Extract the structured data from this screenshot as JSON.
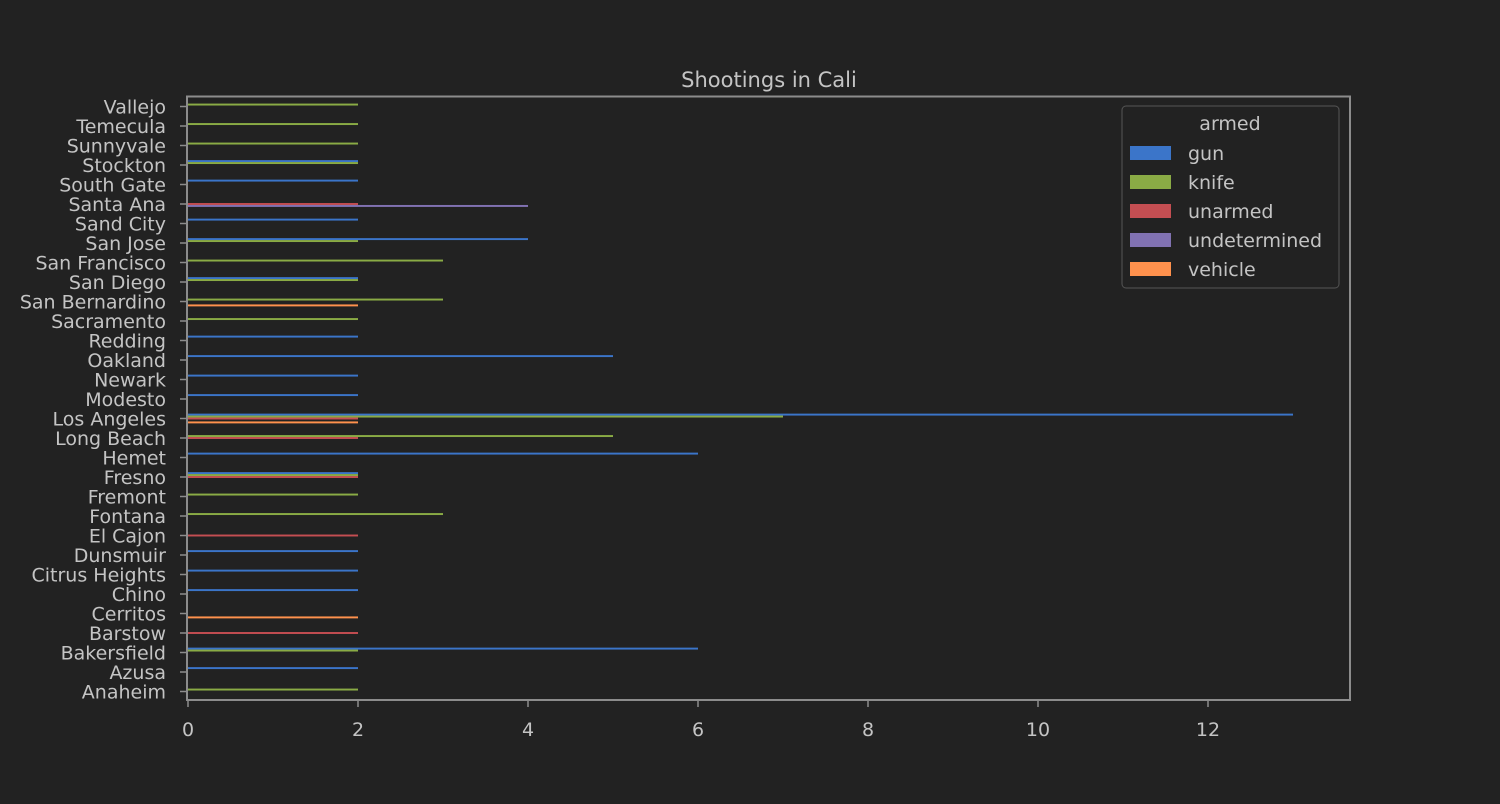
{
  "chart_data": {
    "type": "bar",
    "orientation": "horizontal",
    "title": "Shootings in Cali",
    "xlabel": "",
    "ylabel": "",
    "xlim": [
      0,
      13.65
    ],
    "xticks": [
      "0",
      "2",
      "4",
      "6",
      "8",
      "10",
      "12"
    ],
    "grid": false,
    "legend_position": "top-right",
    "legend_title": "armed",
    "categories": [
      "Anaheim",
      "Azusa",
      "Bakersfield",
      "Barstow",
      "Cerritos",
      "Chino",
      "Citrus Heights",
      "Dunsmuir",
      "El Cajon",
      "Fontana",
      "Fremont",
      "Fresno",
      "Hemet",
      "Long Beach",
      "Los Angeles",
      "Modesto",
      "Newark",
      "Oakland",
      "Redding",
      "Sacramento",
      "San Bernardino",
      "San Diego",
      "San Francisco",
      "San Jose",
      "Sand City",
      "Santa Ana",
      "South Gate",
      "Stockton",
      "Sunnyvale",
      "Temecula",
      "Vallejo"
    ],
    "series": [
      {
        "name": "gun",
        "color": "#3b75c9",
        "values": [
          0,
          2,
          6,
          0,
          0,
          2,
          2,
          2,
          0,
          0,
          0,
          2,
          6,
          0,
          13,
          2,
          2,
          5,
          2,
          0,
          0,
          2,
          0,
          4,
          2,
          0,
          2,
          2,
          0,
          0,
          0
        ]
      },
      {
        "name": "knife",
        "color": "#8aab45",
        "values": [
          2,
          0,
          2,
          0,
          0,
          0,
          0,
          0,
          0,
          3,
          2,
          2,
          0,
          5,
          7,
          0,
          0,
          0,
          0,
          2,
          3,
          2,
          3,
          2,
          0,
          0,
          0,
          2,
          2,
          2,
          2
        ]
      },
      {
        "name": "unarmed",
        "color": "#c44e52",
        "values": [
          0,
          0,
          0,
          2,
          0,
          0,
          0,
          0,
          2,
          0,
          0,
          2,
          0,
          2,
          2,
          0,
          0,
          0,
          0,
          0,
          0,
          0,
          0,
          0,
          0,
          2,
          0,
          0,
          0,
          0,
          0
        ]
      },
      {
        "name": "undetermined",
        "color": "#8172b2",
        "values": [
          0,
          0,
          0,
          0,
          0,
          0,
          0,
          0,
          0,
          0,
          0,
          0,
          0,
          0,
          0,
          0,
          0,
          0,
          0,
          0,
          0,
          0,
          0,
          0,
          0,
          4,
          0,
          0,
          0,
          0,
          0
        ]
      },
      {
        "name": "vehicle",
        "color": "#ff914d",
        "values": [
          0,
          0,
          0,
          0,
          2,
          0,
          0,
          0,
          0,
          0,
          0,
          0,
          0,
          0,
          2,
          0,
          0,
          0,
          0,
          0,
          2,
          0,
          0,
          0,
          0,
          0,
          0,
          0,
          0,
          0,
          0
        ]
      }
    ]
  },
  "colors": {
    "background": "#222222",
    "axes_edge": "#8c8c8c",
    "text": "#c4c4c4"
  }
}
